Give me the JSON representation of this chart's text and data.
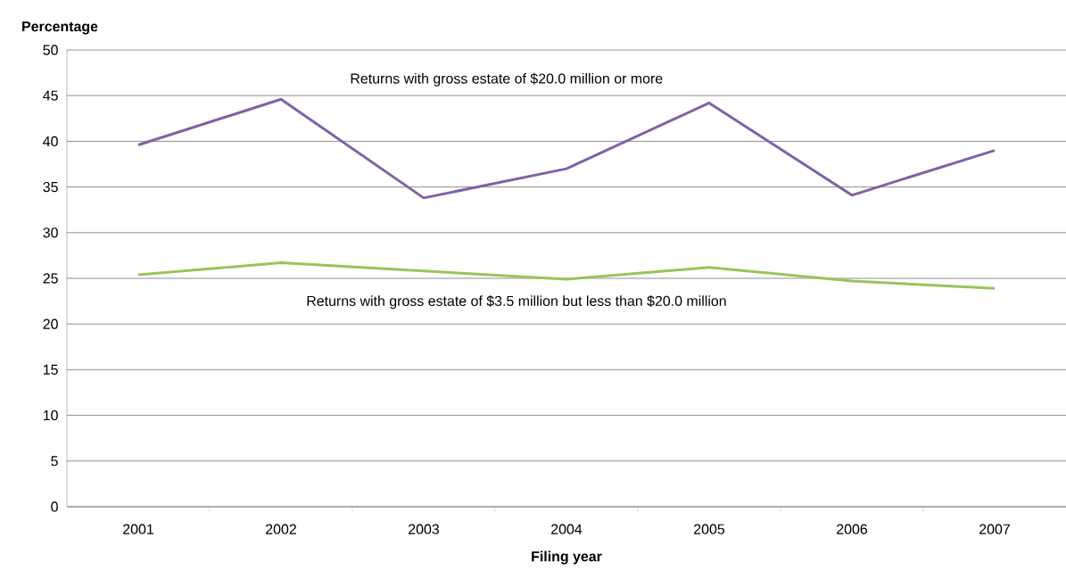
{
  "chart_data": {
    "type": "line",
    "xlabel": "Filing year",
    "ylabel": "Percentage",
    "categories": [
      "2001",
      "2002",
      "2003",
      "2004",
      "2005",
      "2006",
      "2007"
    ],
    "series": [
      {
        "name": "Returns with gross estate of $20.0 million or more",
        "color": "#7e62a8",
        "values": [
          39.6,
          44.6,
          33.8,
          37.0,
          44.2,
          34.1,
          39.0
        ]
      },
      {
        "name": "Returns with gross estate of $3.5 million but less than $20.0 million",
        "color": "#9bc45a",
        "values": [
          25.4,
          26.7,
          25.8,
          24.9,
          26.2,
          24.7,
          23.9
        ]
      }
    ],
    "ylim": [
      0,
      50
    ],
    "yticks": [
      0,
      5,
      10,
      15,
      20,
      25,
      30,
      35,
      40,
      45,
      50
    ],
    "grid": "y",
    "marker": "none",
    "line_style": "solid"
  }
}
